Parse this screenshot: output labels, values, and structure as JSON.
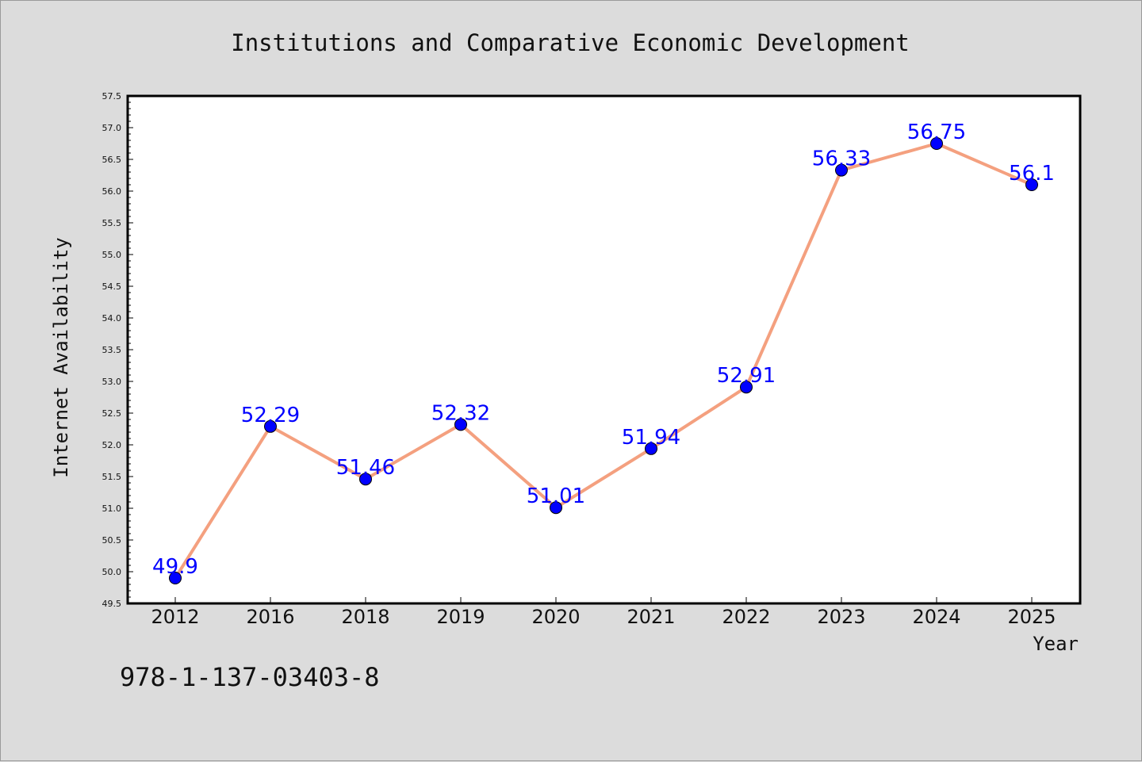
{
  "chart_data": {
    "type": "line",
    "title": "Institutions and Comparative Economic Development",
    "xlabel": "Year",
    "ylabel": "Internet Availability",
    "categories": [
      "2012",
      "2016",
      "2018",
      "2019",
      "2020",
      "2021",
      "2022",
      "2023",
      "2024",
      "2025"
    ],
    "series": [
      {
        "values": [
          49.9,
          52.29,
          51.46,
          52.32,
          51.01,
          51.94,
          52.91,
          56.33,
          56.75,
          56.1
        ],
        "labels": [
          "49.9",
          "52.29",
          "51.46",
          "52.32",
          "51.01",
          "51.94",
          "52.91",
          "56.33",
          "56.75",
          "56.1"
        ]
      }
    ],
    "ylim": [
      49.5,
      57.5
    ],
    "yticks": [
      "49.5",
      "50.0",
      "50.5",
      "51.0",
      "51.5",
      "52.0",
      "52.5",
      "53.0",
      "53.5",
      "54.0",
      "54.5",
      "55.0",
      "55.5",
      "56.0",
      "56.5",
      "57.0",
      "57.5"
    ],
    "grid": false,
    "legend": "none",
    "colors": {
      "line": "#f4a07f",
      "marker": "#0000ff",
      "marker_edge": "#000000",
      "data_label": "#0000ff",
      "plot_background": "#ffffff",
      "figure_background": "#dcdcdc"
    }
  },
  "footer": {
    "isbn": "978-1-137-03403-8"
  }
}
